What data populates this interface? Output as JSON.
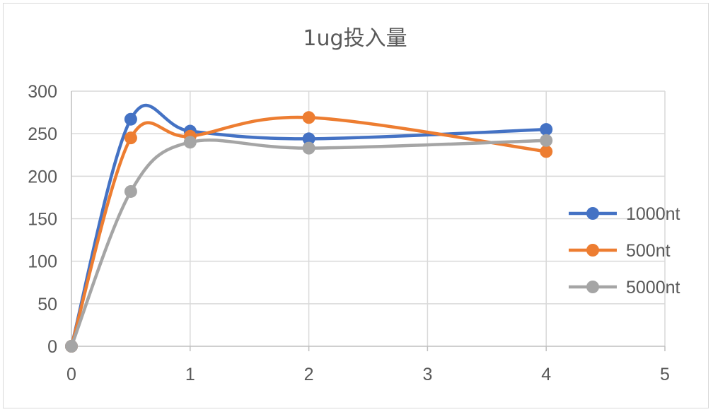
{
  "chart_data": {
    "type": "scatter",
    "title": "1ug投入量",
    "xlabel": "",
    "ylabel": "",
    "xlim": [
      0,
      5
    ],
    "ylim": [
      0,
      300
    ],
    "x_ticks": [
      0,
      1,
      2,
      3,
      4,
      5
    ],
    "y_ticks": [
      0,
      50,
      100,
      150,
      200,
      250,
      300
    ],
    "grid": true,
    "smooth_lines": true,
    "legend_position": "right",
    "series": [
      {
        "name": "1000nt",
        "color": "#4472C4",
        "points": [
          [
            0,
            0
          ],
          [
            0.5,
            267
          ],
          [
            1,
            253
          ],
          [
            2,
            244
          ],
          [
            4,
            255
          ]
        ]
      },
      {
        "name": "500nt",
        "color": "#ED7D31",
        "points": [
          [
            0,
            0
          ],
          [
            0.5,
            245
          ],
          [
            1,
            247
          ],
          [
            2,
            269
          ],
          [
            4,
            229
          ]
        ]
      },
      {
        "name": "5000nt",
        "color": "#A5A5A5",
        "points": [
          [
            0,
            0
          ],
          [
            0.5,
            182
          ],
          [
            1,
            240
          ],
          [
            2,
            233
          ],
          [
            4,
            242
          ]
        ]
      }
    ]
  }
}
